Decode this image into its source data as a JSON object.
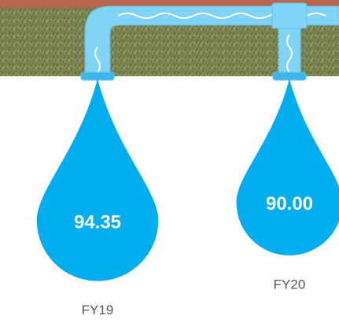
{
  "chart_data": {
    "type": "drop",
    "categories": [
      "FY19",
      "FY20"
    ],
    "values": [
      94.35,
      90.0
    ],
    "value_labels": [
      "94.35",
      "90.00"
    ],
    "color": "#00aeef"
  }
}
